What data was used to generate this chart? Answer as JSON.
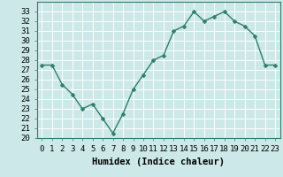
{
  "x": [
    0,
    1,
    2,
    3,
    4,
    5,
    6,
    7,
    8,
    9,
    10,
    11,
    12,
    13,
    14,
    15,
    16,
    17,
    18,
    19,
    20,
    21,
    22,
    23
  ],
  "y": [
    27.5,
    27.5,
    25.5,
    24.5,
    23,
    23.5,
    22,
    20.5,
    22.5,
    25,
    26.5,
    28,
    28.5,
    31,
    31.5,
    33,
    32,
    32.5,
    33,
    32,
    31.5,
    30.5,
    27.5,
    27.5
  ],
  "line_color": "#2e7d6e",
  "marker": "D",
  "marker_size": 2.5,
  "line_width": 1.0,
  "bg_color": "#cce8e8",
  "grid_color": "#b0d8d8",
  "xlabel": "Humidex (Indice chaleur)",
  "ylabel": "",
  "xlim": [
    -0.5,
    23.5
  ],
  "ylim": [
    20,
    34
  ],
  "yticks": [
    20,
    21,
    22,
    23,
    24,
    25,
    26,
    27,
    28,
    29,
    30,
    31,
    32,
    33
  ],
  "xticks": [
    0,
    1,
    2,
    3,
    4,
    5,
    6,
    7,
    8,
    9,
    10,
    11,
    12,
    13,
    14,
    15,
    16,
    17,
    18,
    19,
    20,
    21,
    22,
    23
  ],
  "xlabel_fontsize": 7.5,
  "tick_fontsize": 6.5,
  "fig_width": 3.2,
  "fig_height": 2.0,
  "dpi": 100
}
